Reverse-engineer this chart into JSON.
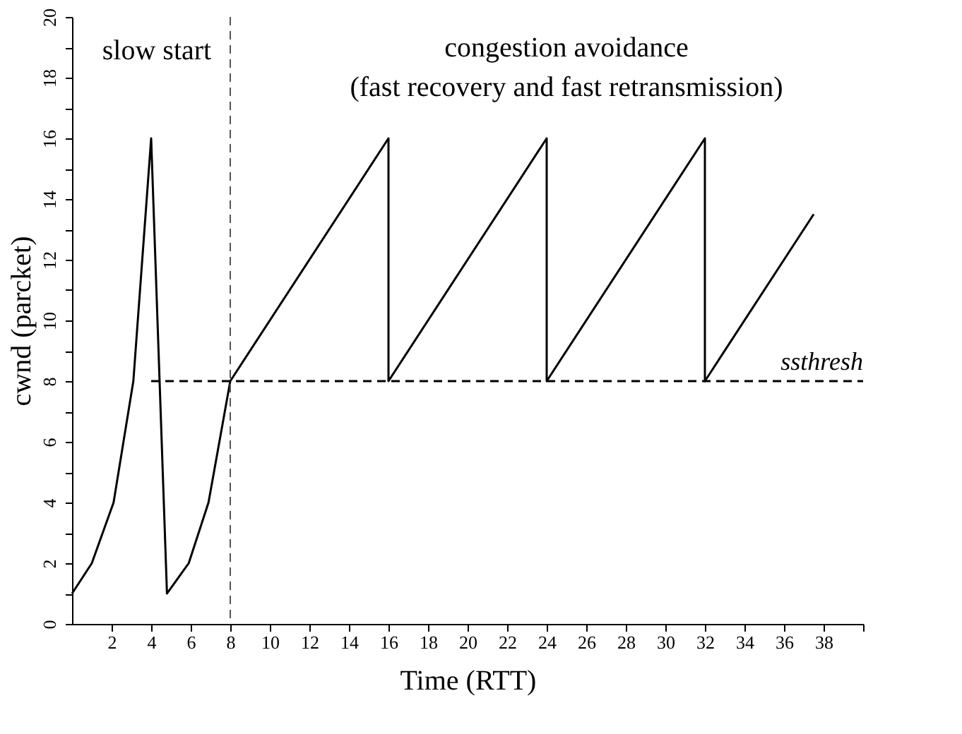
{
  "chart_data": {
    "type": "line",
    "xlabel": "Time (RTT)",
    "ylabel": "cwnd (parcket)",
    "xlim": [
      0,
      40
    ],
    "ylim": [
      0,
      20
    ],
    "xticks": [
      2,
      4,
      6,
      8,
      10,
      12,
      14,
      16,
      18,
      20,
      22,
      24,
      26,
      28,
      30,
      32,
      34,
      36,
      38,
      {
        "value": 40,
        "label": null
      }
    ],
    "yticks": [
      0,
      {
        "value": 1,
        "label": null
      },
      2,
      {
        "value": 3,
        "label": null
      },
      4,
      {
        "value": 5,
        "label": null
      },
      6,
      {
        "value": 7,
        "label": null
      },
      8,
      {
        "value": 9,
        "label": null
      },
      10,
      {
        "value": 11,
        "label": null
      },
      12,
      {
        "value": 13,
        "label": null
      },
      14,
      {
        "value": 15,
        "label": null
      },
      16,
      {
        "value": 17,
        "label": null
      },
      18,
      {
        "value": 19,
        "label": null
      },
      20
    ],
    "series": [
      {
        "color": "#000000",
        "x": [
          0,
          1,
          2.1,
          3.1,
          4,
          4.8,
          5.9,
          6.9,
          8,
          16,
          16,
          24,
          24,
          32,
          32,
          37.5
        ],
        "values": [
          1,
          2,
          4,
          8,
          16,
          1,
          2,
          4,
          8,
          16,
          8,
          16,
          8,
          16,
          8,
          13.5
        ]
      },
      {
        "name": "ssthresh",
        "color": "#000000",
        "line_style": "dashed",
        "x": [
          4,
          40
        ],
        "values": [
          8,
          8
        ]
      }
    ],
    "ref_lines": [
      {
        "axis": "x",
        "value": 8,
        "color": "#555555",
        "line_style": "dashed"
      }
    ],
    "annotations": [
      "slow start",
      "congestion avoidance",
      "(fast recovery and fast retransmission)"
    ],
    "grid": false,
    "marker": "none",
    "line_style": "solid"
  }
}
